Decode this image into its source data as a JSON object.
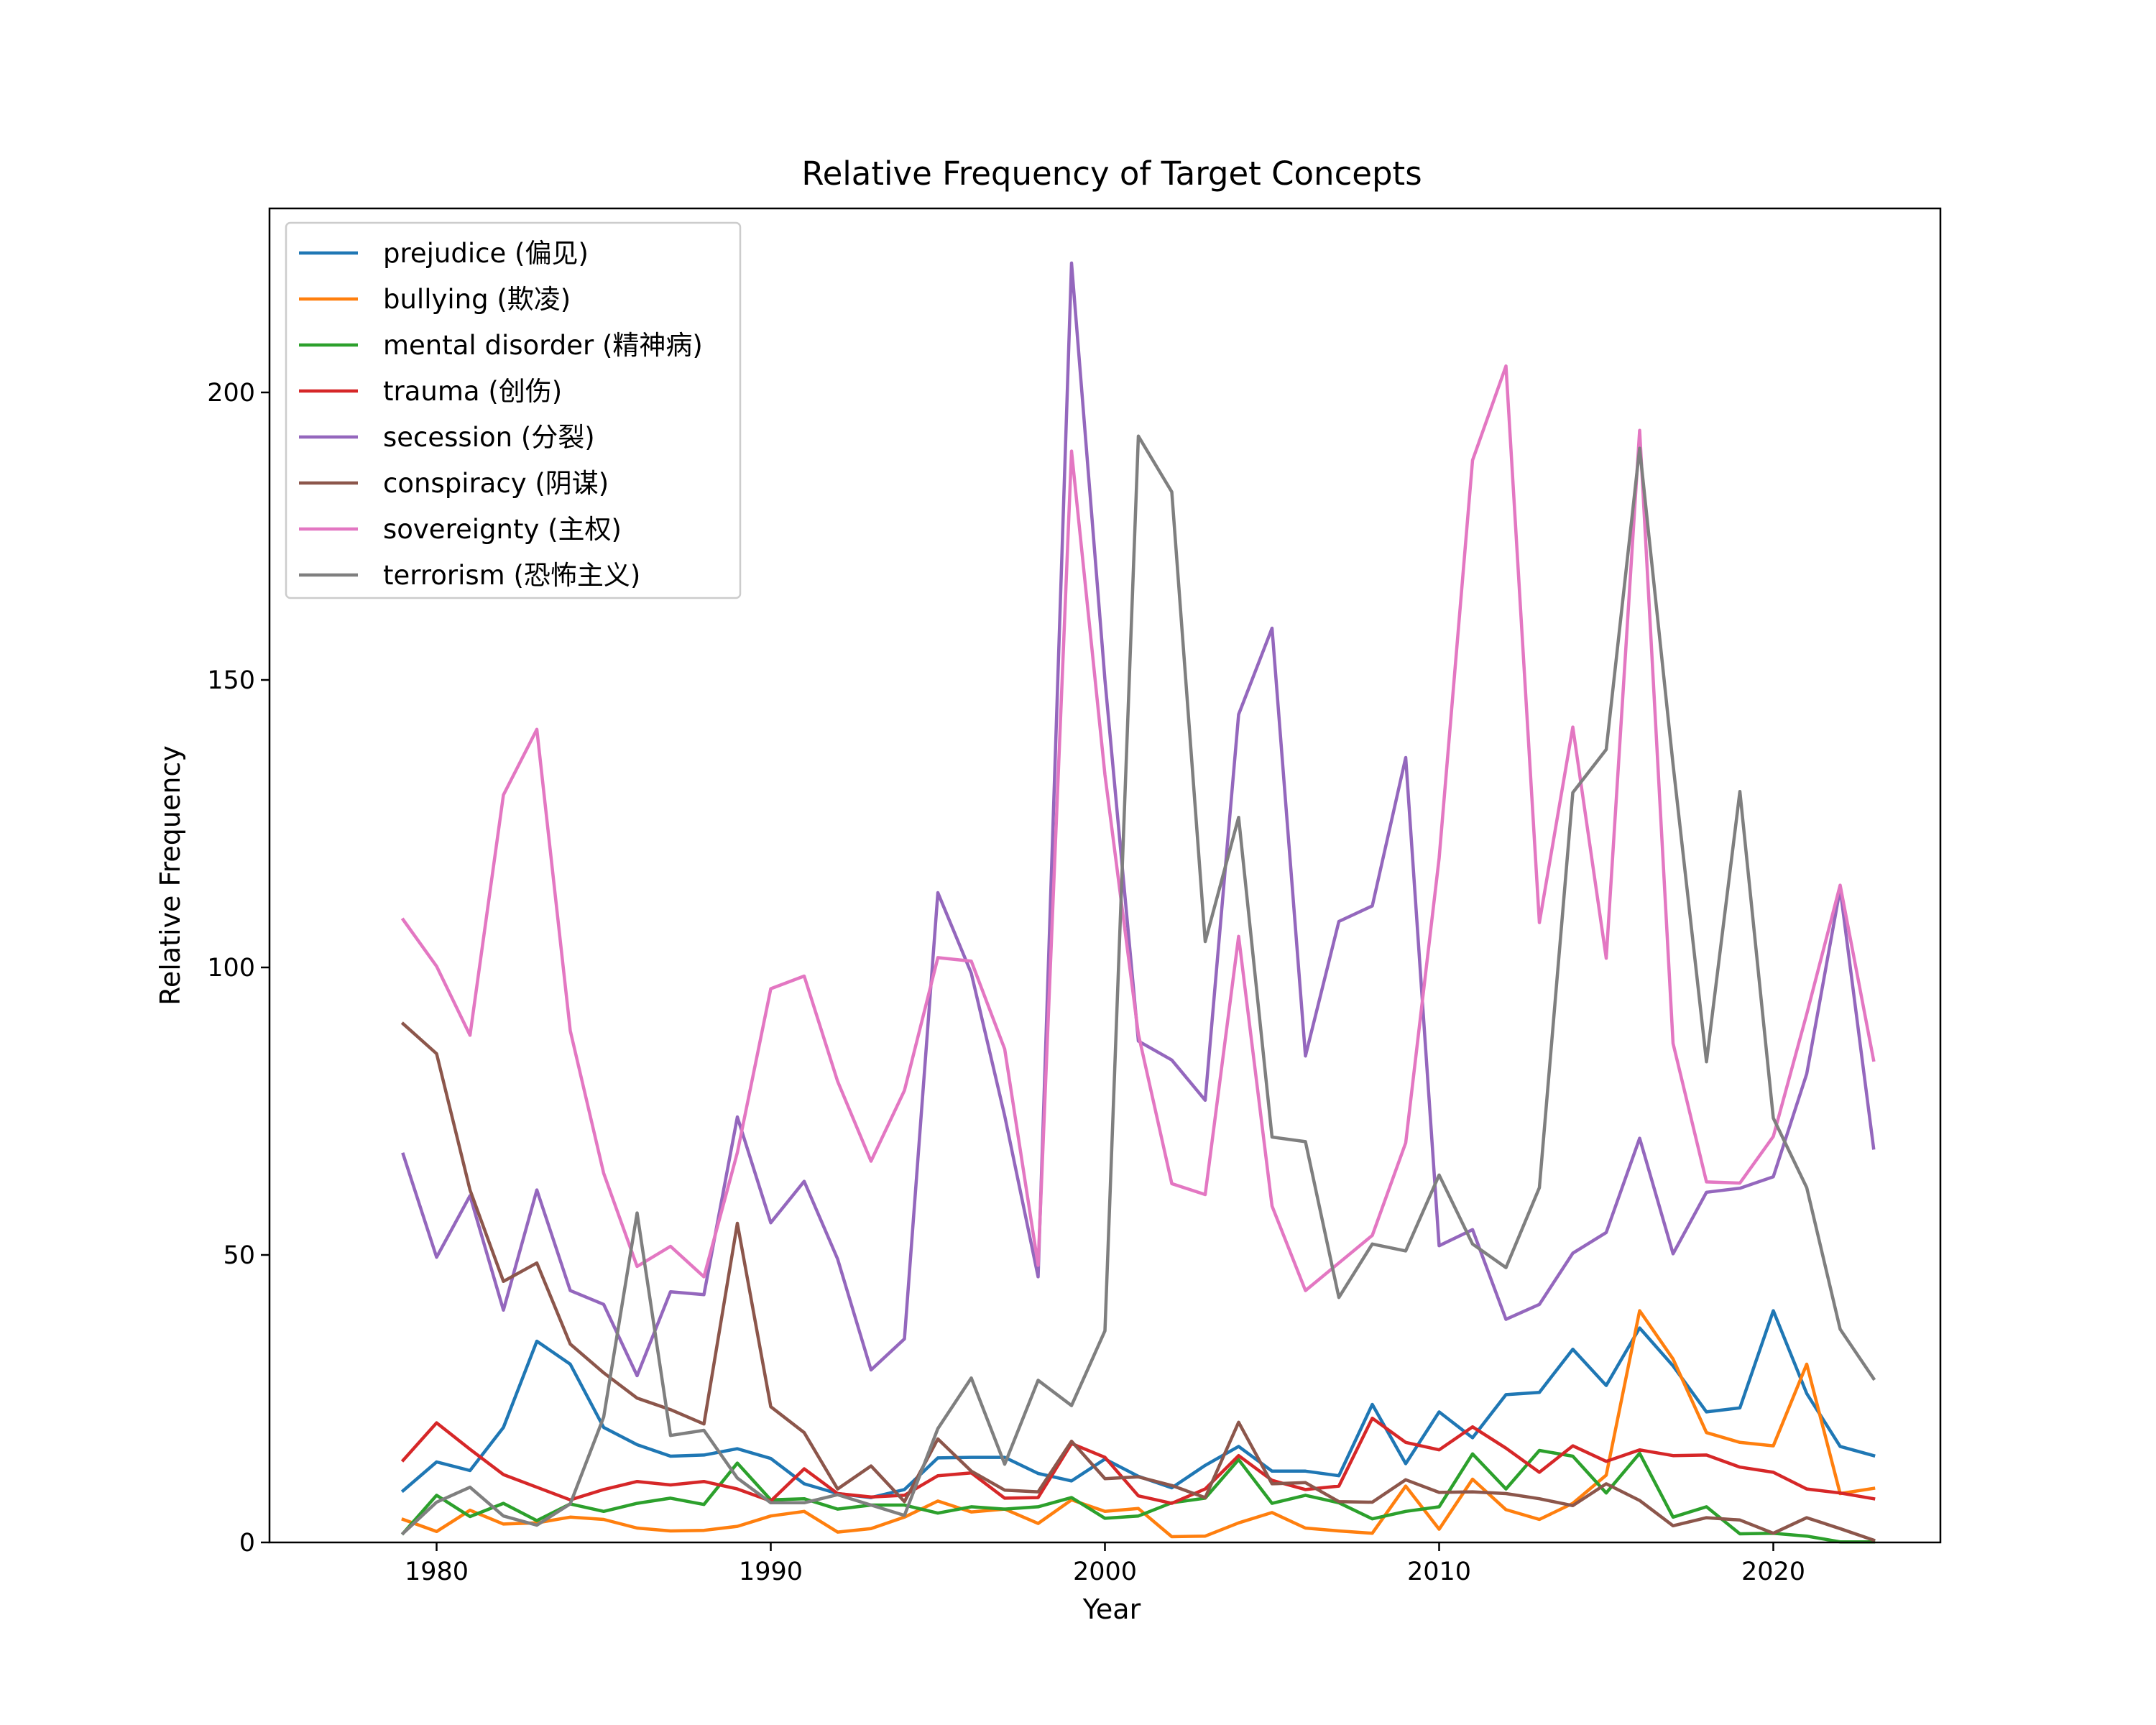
{
  "chart_data": {
    "type": "line",
    "title": "Relative Frequency of Target Concepts",
    "xlabel": "Year",
    "ylabel": "Relative Frequency",
    "xlim": [
      1975,
      2025
    ],
    "ylim": [
      0,
      232
    ],
    "x_ticks": [
      1980,
      1990,
      2000,
      2010,
      2020
    ],
    "y_ticks": [
      0,
      50,
      100,
      150,
      200
    ],
    "grid": false,
    "legend_position": "top-left",
    "x": [
      1979,
      1980,
      1981,
      1982,
      1983,
      1984,
      1985,
      1986,
      1987,
      1988,
      1989,
      1990,
      1991,
      1992,
      1993,
      1994,
      1995,
      1996,
      1997,
      1998,
      1999,
      2000,
      2001,
      2002,
      2003,
      2004,
      2005,
      2006,
      2007,
      2008,
      2009,
      2010,
      2011,
      2012,
      2013,
      2014,
      2015,
      2016,
      2017,
      2018,
      2019,
      2020,
      2021,
      2022,
      2023
    ],
    "series": [
      {
        "name": "prejudice (偏见)",
        "color": "#1f77b4",
        "values": [
          9,
          14,
          12.5,
          20,
          35,
          31,
          20,
          17,
          15,
          15.2,
          16.3,
          14.6,
          10.2,
          8.5,
          7.8,
          9.2,
          14.7,
          14.8,
          14.8,
          12,
          10.7,
          14.5,
          11.5,
          9.5,
          13.4,
          16.7,
          12.4,
          12.4,
          11.6,
          24,
          13.7,
          22.7,
          18.2,
          25.7,
          26.1,
          33.6,
          27.3,
          37.3,
          30.7,
          22.7,
          23.4,
          40.3,
          25.9,
          16.7,
          15.1
        ]
      },
      {
        "name": "bullying (欺凌)",
        "color": "#ff7f0e",
        "values": [
          4,
          1.9,
          5.6,
          3.2,
          3.4,
          4.4,
          4,
          2.5,
          2,
          2.1,
          2.8,
          4.6,
          5.4,
          1.8,
          2.4,
          4.4,
          7.2,
          5.3,
          5.8,
          3.3,
          7.4,
          5.4,
          5.9,
          1,
          1.1,
          3.4,
          5.2,
          2.5,
          2,
          1.6,
          9.8,
          2.3,
          11,
          5.7,
          4,
          6.8,
          11.7,
          40.3,
          31.9,
          19.1,
          17.4,
          16.8,
          31,
          8.5,
          9.4
        ]
      },
      {
        "name": "mental disorder (精神病)",
        "color": "#2ca02c",
        "values": [
          1.6,
          8.2,
          4.5,
          6.8,
          3.8,
          6.7,
          5.4,
          6.8,
          7.7,
          6.6,
          13.8,
          7.4,
          7.6,
          5.8,
          6.5,
          6.5,
          5.1,
          6.2,
          5.8,
          6.2,
          7.8,
          4.2,
          4.6,
          6.9,
          7.7,
          14.4,
          6.8,
          8.2,
          6.9,
          4.1,
          5.4,
          6.2,
          15.4,
          9.3,
          16,
          15,
          8.6,
          15.5,
          4.4,
          6.2,
          1.5,
          1.6,
          1.1,
          0.1,
          0.1
        ]
      },
      {
        "name": "trauma (创伤)",
        "color": "#d62728",
        "values": [
          14.3,
          20.8,
          16.2,
          11.8,
          9.6,
          7.4,
          9.2,
          10.6,
          10,
          10.6,
          9.3,
          7.2,
          12.8,
          8.5,
          7.9,
          8.2,
          11.6,
          12.1,
          7.7,
          7.8,
          17.2,
          14.8,
          8.1,
          6.8,
          9.3,
          15.1,
          10.8,
          9.2,
          9.8,
          21.6,
          17.4,
          16.1,
          20.1,
          16.4,
          12.2,
          16.8,
          14.1,
          16.1,
          15.1,
          15.2,
          13.1,
          12.2,
          9.3,
          8.6,
          7.6
        ]
      },
      {
        "name": "secession (分裂)",
        "color": "#9467bd",
        "values": [
          67.5,
          49.6,
          60.3,
          40.4,
          61.3,
          43.8,
          41.4,
          29,
          43.6,
          43.1,
          74,
          55.6,
          62.8,
          49.3,
          30,
          35.4,
          113,
          99,
          74.2,
          46.2,
          222.5,
          150,
          87.2,
          83.9,
          76.9,
          144,
          159,
          84.6,
          108,
          110.7,
          136.5,
          51.6,
          54.4,
          38.8,
          41.4,
          50.3,
          53.9,
          70.3,
          50.2,
          60.9,
          61.6,
          63.6,
          81.5,
          113.7,
          68.6
        ]
      },
      {
        "name": "conspiracy (阴谋)",
        "color": "#8c564b",
        "values": [
          90.2,
          85,
          61.3,
          45.4,
          48.6,
          34.5,
          29.5,
          25.1,
          23.1,
          20.6,
          55.5,
          23.6,
          19.1,
          9.3,
          13.3,
          7.1,
          18,
          12.4,
          9.1,
          8.8,
          17.6,
          11.1,
          11.4,
          9.9,
          7.8,
          20.9,
          10.2,
          10.4,
          7.1,
          7,
          10.9,
          8.7,
          8.8,
          8.5,
          7.6,
          6.4,
          10.2,
          7.3,
          2.9,
          4.3,
          3.9,
          1.6,
          4.3,
          2.4,
          0.4
        ]
      },
      {
        "name": "sovereignty (主权)",
        "color": "#e377c2",
        "values": [
          108.3,
          100.2,
          88.2,
          130,
          141.4,
          89,
          64.2,
          48,
          51.5,
          46.2,
          67.8,
          96.3,
          98.5,
          80.2,
          66.3,
          78.6,
          101.7,
          101.1,
          85.8,
          48.2,
          189.8,
          133.5,
          88.4,
          62.4,
          60.5,
          105.4,
          58.5,
          43.8,
          48.6,
          53.4,
          69.5,
          119,
          188.2,
          204.6,
          107.8,
          141.8,
          101.6,
          193.4,
          86.8,
          62.7,
          62.5,
          70.6,
          91.9,
          114.3,
          83.9
        ]
      },
      {
        "name": "terrorism (恐怖主义)",
        "color": "#7f7f7f",
        "values": [
          1.6,
          7,
          9.6,
          4.6,
          3,
          6.7,
          21.8,
          57.3,
          18.6,
          19.5,
          11.2,
          6.9,
          6.9,
          8.3,
          6.5,
          4.7,
          19.8,
          28.6,
          13.6,
          28.2,
          23.8,
          36.8,
          192.4,
          182.7,
          104.5,
          126.1,
          70.5,
          69.7,
          42.6,
          51.9,
          50.7,
          63.9,
          51.9,
          47.8,
          61.7,
          130.4,
          137.9,
          190.3,
          135.3,
          83.6,
          130.6,
          73.8,
          61.7,
          37.1,
          28.5
        ]
      }
    ]
  }
}
